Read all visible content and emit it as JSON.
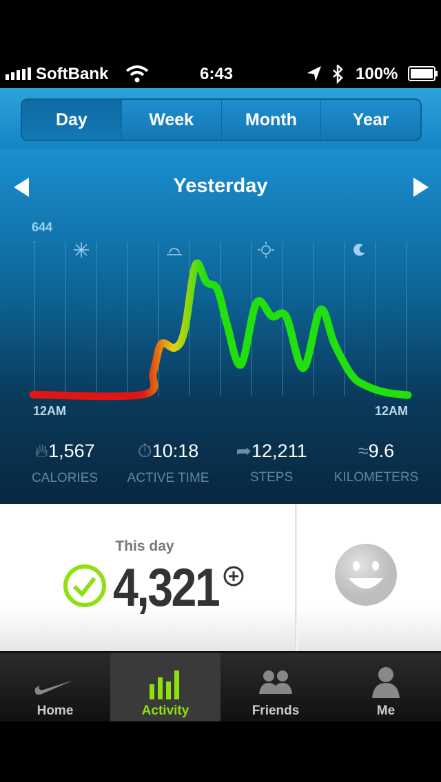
{
  "status_bar": {
    "carrier": "SoftBank",
    "time": "6:43",
    "battery": "100%"
  },
  "tabs": [
    "Day",
    "Week",
    "Month",
    "Year"
  ],
  "period": "Yesterday",
  "chart_data": {
    "type": "line",
    "x": [
      0,
      7,
      7.7,
      8.2,
      9.1,
      9.7,
      10.4,
      11.1,
      11.8,
      12.4,
      13.3,
      14.3,
      15.3,
      16.2,
      17.3,
      18.4,
      19.3,
      20.4,
      21.3,
      22.6,
      24
    ],
    "series": [
      {
        "values": [
          5,
          5,
          101,
          217,
          202,
          275,
          549,
          477,
          448,
          304,
          130,
          390,
          333,
          333,
          116,
          361,
          217,
          87,
          43,
          14,
          3
        ]
      }
    ],
    "colors": [
      "#e01612",
      "#e3d012",
      "#22e00e"
    ],
    "xlim": [
      0,
      24
    ],
    "ylim": [
      0,
      644
    ],
    "xticks": [
      {
        "value": 0,
        "label": "12AM"
      },
      {
        "value": 24,
        "label": "12AM"
      }
    ],
    "yticks": [
      644
    ],
    "grid": true
  },
  "stats": [
    {
      "value": "1,567",
      "label": "CALORIES"
    },
    {
      "value": "10:18",
      "label": "ACTIVE TIME"
    },
    {
      "value": "12,211",
      "label": "STEPS"
    },
    {
      "value": "9.6",
      "label": "KILOMETERS"
    }
  ],
  "summary": {
    "label": "This day",
    "value": "4,321"
  },
  "nav": [
    "Home",
    "Activity",
    "Friends",
    "Me"
  ]
}
